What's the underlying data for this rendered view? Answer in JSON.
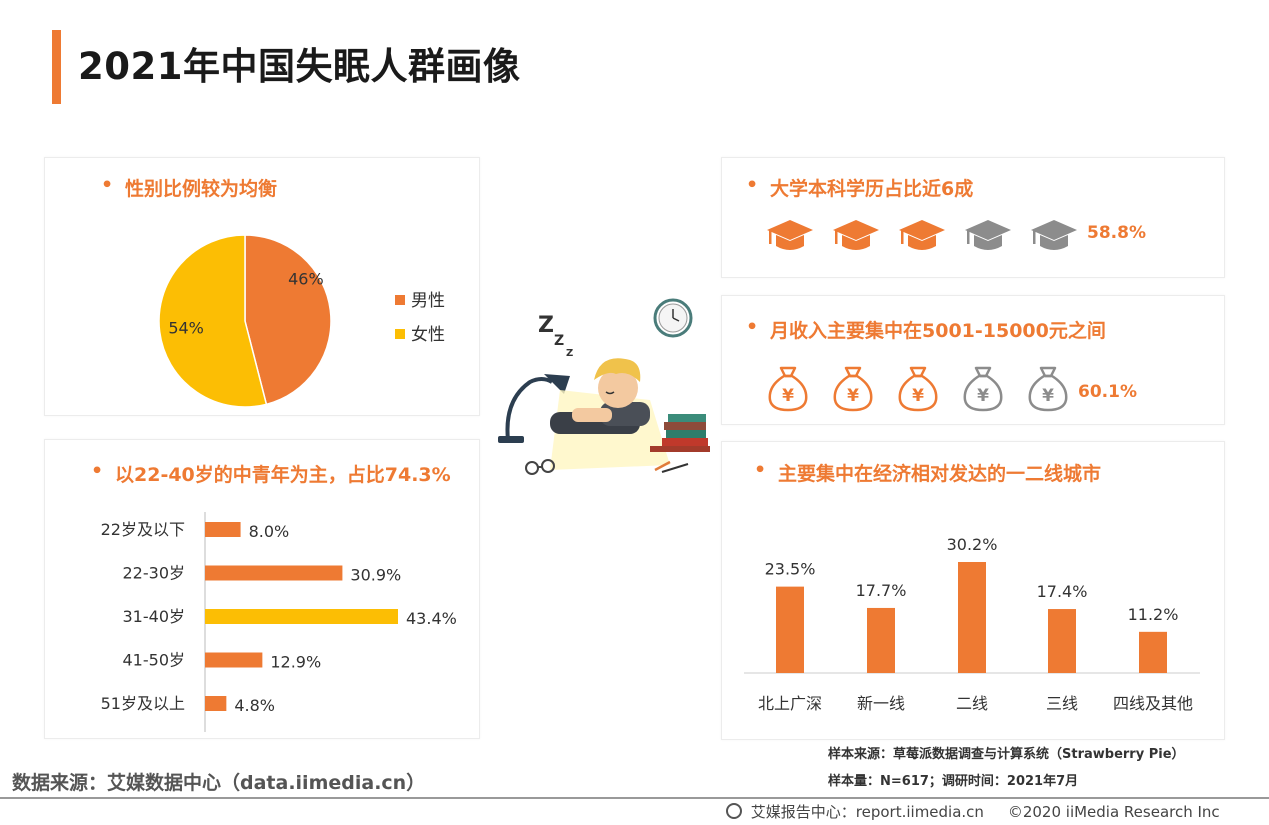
{
  "page_title": "2021年中国失眠人群画像",
  "footer": {
    "source": "数据来源：艾媒数据中心（data.iimedia.cn）",
    "sample_source": "样本来源：草莓派数据调查与计算系统（Strawberry Pie）",
    "sample_size": "样本量：N=617；调研时间：2021年7月",
    "copyright_site": "艾媒报告中心：report.iimedia.cn",
    "copyright_text": "©2020  iiMedia Research  Inc"
  },
  "colors": {
    "accent": "#EE7A33",
    "yellow": "#FCBE04",
    "gray": "#8C8C8C"
  },
  "gender": {
    "heading": "性别比例较为均衡",
    "legend": [
      "男性",
      "女性"
    ]
  },
  "age": {
    "heading": "以22-40岁的中青年为主，占比74.3%"
  },
  "education": {
    "heading": "大学本科学历占比近6成",
    "value_label": "58.8%",
    "icon": "graduation-cap-icon",
    "filled_icons": 3,
    "total_icons": 5
  },
  "income": {
    "heading": "月收入主要集中在5001-15000元之间",
    "value_label": "60.1%",
    "icon": "money-bag-icon",
    "currency_symbol": "¥",
    "filled_icons": 3,
    "total_icons": 5
  },
  "city": {
    "heading": "主要集中在经济相对发达的一二线城市"
  },
  "chart_data": [
    {
      "type": "pie",
      "categories": [
        "男性",
        "女性"
      ],
      "values": [
        46,
        54
      ],
      "labels": [
        "46%",
        "54%"
      ],
      "colors": [
        "#EE7A33",
        "#FCBE04"
      ],
      "legend": "right"
    },
    {
      "type": "bar",
      "orientation": "horizontal",
      "categories": [
        "22岁及以下",
        "22-30岁",
        "31-40岁",
        "41-50岁",
        "51岁及以上"
      ],
      "values": [
        8.0,
        30.9,
        43.4,
        12.9,
        4.8
      ],
      "labels": [
        "8.0%",
        "30.9%",
        "43.4%",
        "12.9%",
        "4.8%"
      ],
      "colors": [
        "#EE7A33",
        "#EE7A33",
        "#FCBE04",
        "#EE7A33",
        "#EE7A33"
      ],
      "grid": false
    },
    {
      "type": "bar",
      "orientation": "vertical",
      "categories": [
        "北上广深",
        "新一线",
        "二线",
        "三线",
        "四线及其他"
      ],
      "values": [
        23.5,
        17.7,
        30.2,
        17.4,
        11.2
      ],
      "labels": [
        "23.5%",
        "17.7%",
        "30.2%",
        "17.4%",
        "11.2%"
      ],
      "colors": [
        "#EE7A33",
        "#EE7A33",
        "#EE7A33",
        "#EE7A33",
        "#EE7A33"
      ],
      "grid": false
    }
  ]
}
